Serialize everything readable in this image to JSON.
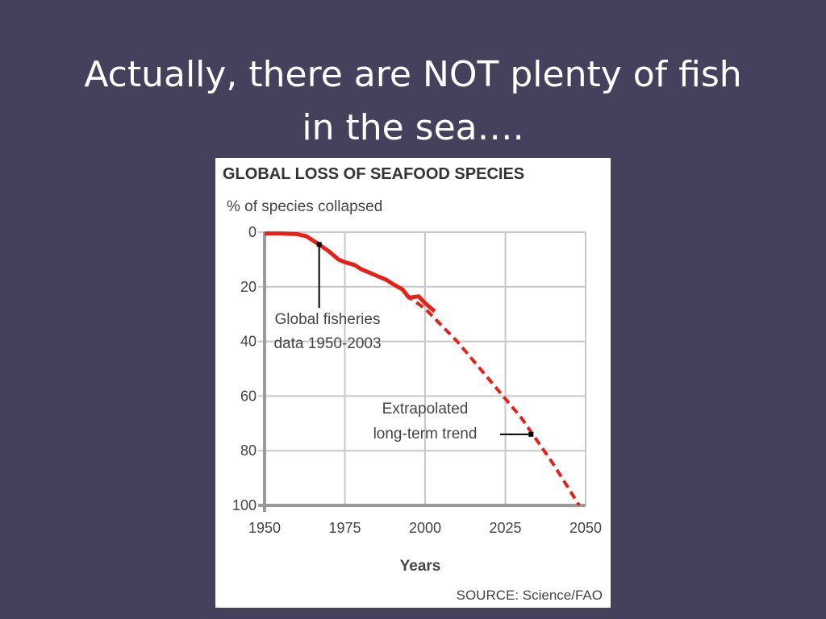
{
  "slide": {
    "title_line1": "Actually, there are NOT plenty of fish",
    "title_line2": "in the sea…."
  },
  "chart_data": {
    "type": "line",
    "title": "GLOBAL LOSS OF SEAFOOD SPECIES",
    "ylabel": "% of species collapsed",
    "xlabel": "Years",
    "source": "SOURCE: Science/FAO",
    "xlim": [
      1950,
      2050
    ],
    "ylim": [
      0,
      100
    ],
    "y_inverted": true,
    "grid": true,
    "x_ticks": [
      1950,
      1975,
      2000,
      2025,
      2050
    ],
    "y_ticks": [
      0,
      20,
      40,
      60,
      80,
      100
    ],
    "colors": {
      "series": "#e8201a",
      "grid": "#c8c8c8",
      "axis": "#9a9a9a"
    },
    "series": [
      {
        "style": "solid",
        "x": [
          1950,
          1955,
          1960,
          1963,
          1967,
          1970,
          1973,
          1975,
          1978,
          1980,
          1983,
          1985,
          1988,
          1990,
          1993,
          1995,
          1998,
          2000,
          2003
        ],
        "y": [
          0.5,
          0.5,
          0.7,
          1.5,
          4.5,
          7,
          10,
          11,
          12,
          13.5,
          15,
          16,
          17.5,
          19,
          21,
          24,
          23.5,
          26,
          29
        ]
      },
      {
        "style": "dashed",
        "x": [
          1994,
          2000,
          2010,
          2020,
          2030,
          2040,
          2048
        ],
        "y": [
          23,
          28,
          40,
          54,
          68,
          85,
          100
        ]
      }
    ],
    "annotations": [
      {
        "line1": "Global fisheries",
        "line2": "data 1950-2003",
        "point": [
          1967,
          4.5
        ]
      },
      {
        "line1": "Extrapolated",
        "line2": "long-term trend",
        "point": [
          2033,
          74
        ]
      }
    ]
  }
}
